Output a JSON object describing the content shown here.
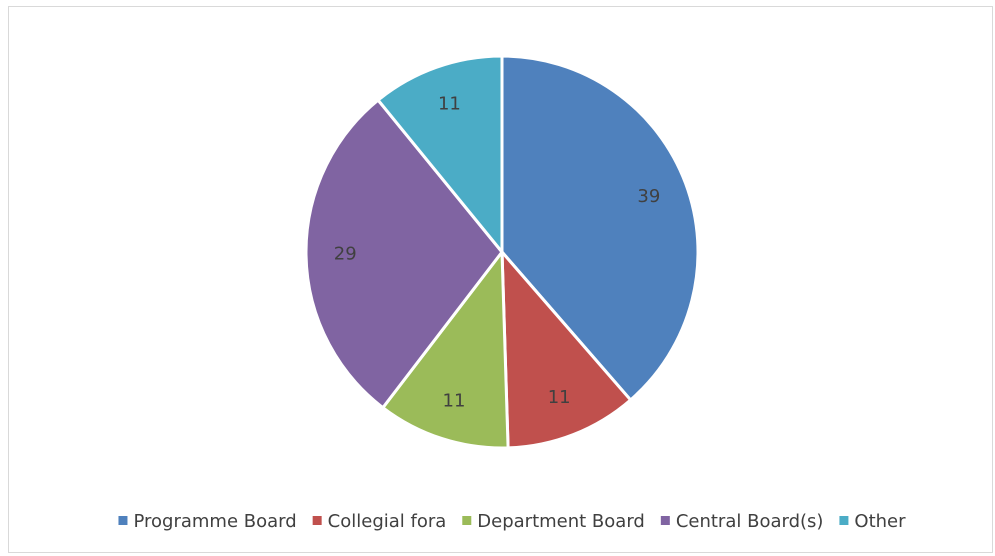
{
  "chart_data": {
    "type": "pie",
    "categories": [
      "Programme Board",
      "Collegial fora",
      "Department Board",
      "Central Board(s)",
      "Other"
    ],
    "values": [
      39,
      11,
      11,
      29,
      11
    ],
    "colors": [
      "#4f81bd",
      "#c0504d",
      "#9bbb59",
      "#8064a2",
      "#4bacc6"
    ],
    "legend": "bottom"
  }
}
